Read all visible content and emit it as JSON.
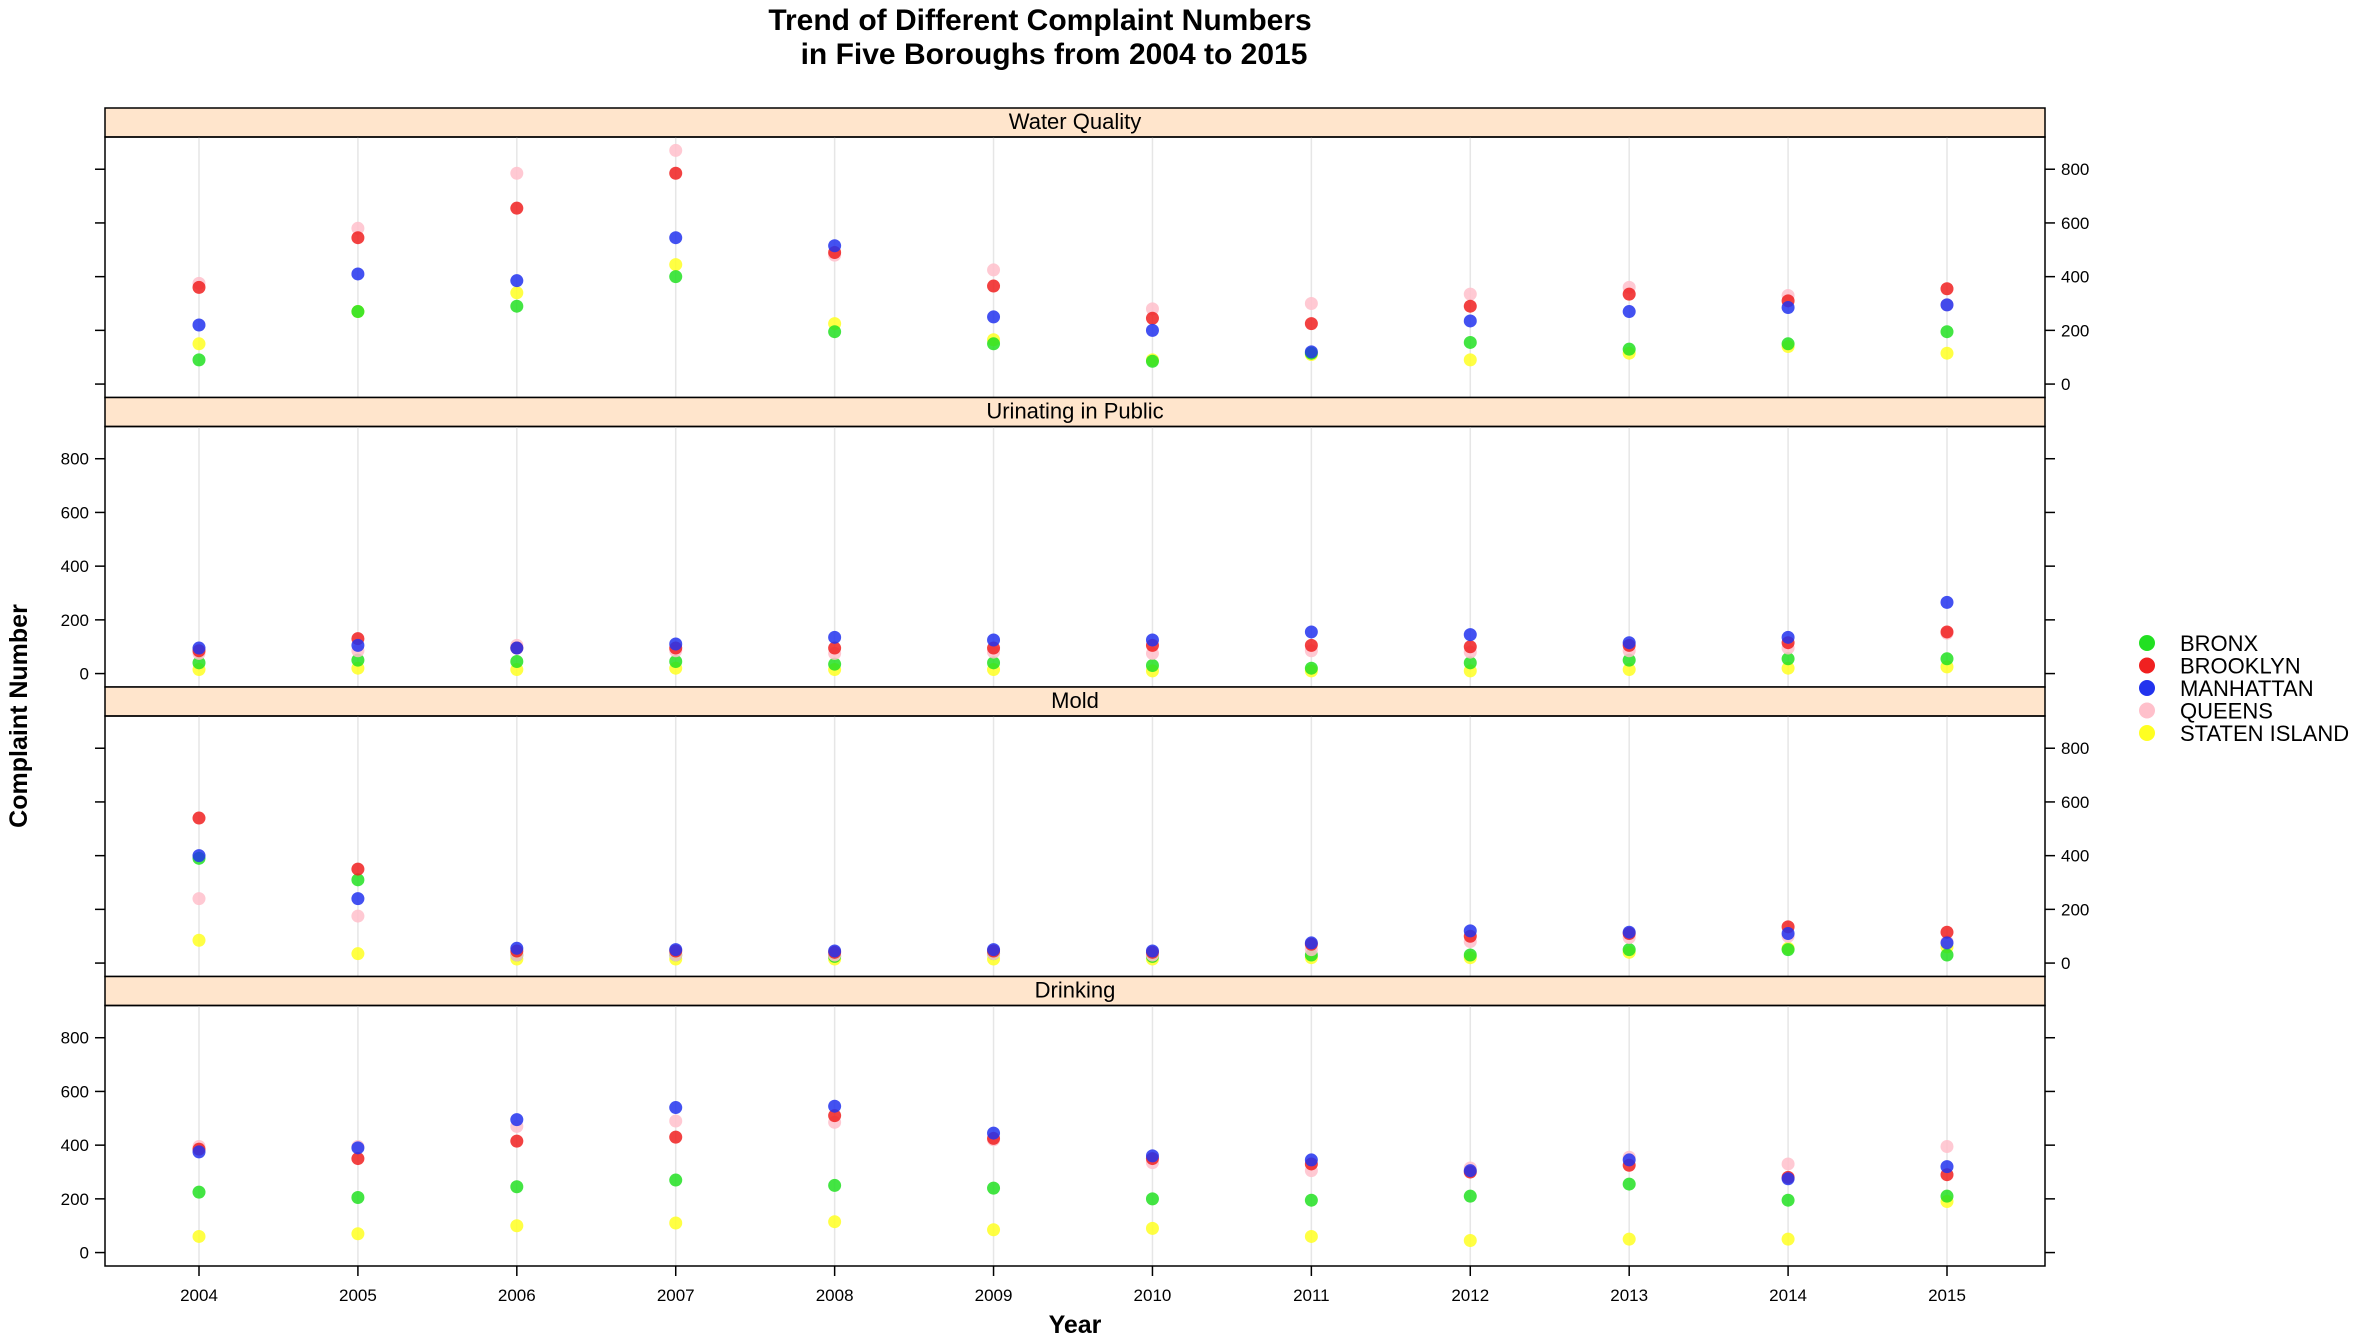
{
  "chart_data": {
    "type": "scatter",
    "title_lines": [
      "Trend of Different Complaint Numbers",
      "in Five Boroughs from 2004 to 2015"
    ],
    "xlabel": "Year",
    "ylabel": "Complaint Number",
    "x": [
      2004,
      2005,
      2006,
      2007,
      2008,
      2009,
      2010,
      2011,
      2012,
      2013,
      2014,
      2015
    ],
    "x_tick_labels": [
      "2004",
      "2005",
      "2006",
      "2007",
      "2008",
      "2009",
      "2010",
      "2011",
      "2012",
      "2013",
      "2014",
      "2015"
    ],
    "y_ticks": [
      0,
      200,
      400,
      600,
      800
    ],
    "y_tick_labels": [
      "0",
      "200",
      "400",
      "600",
      "800"
    ],
    "ylim": [
      -50,
      920
    ],
    "grid": "vertical",
    "legend_position": "right",
    "series": [
      {
        "name": "BRONX",
        "color": "#22e022"
      },
      {
        "name": "BROOKLYN",
        "color": "#f02020"
      },
      {
        "name": "MANHATTAN",
        "color": "#2233ee"
      },
      {
        "name": "QUEENS",
        "color": "#ffc0cb"
      },
      {
        "name": "STATEN ISLAND",
        "color": "#ffff22"
      }
    ],
    "panels": [
      {
        "name": "Water Quality",
        "values": {
          "BRONX": [
            90,
            270,
            290,
            400,
            195,
            150,
            85,
            115,
            155,
            130,
            150,
            195
          ],
          "BROOKLYN": [
            360,
            545,
            655,
            785,
            490,
            365,
            245,
            225,
            290,
            335,
            310,
            355
          ],
          "MANHATTAN": [
            220,
            410,
            385,
            545,
            515,
            250,
            200,
            120,
            235,
            270,
            285,
            295
          ],
          "QUEENS": [
            375,
            580,
            785,
            870,
            480,
            425,
            280,
            300,
            335,
            360,
            330,
            295
          ],
          "STATEN ISLAND": [
            150,
            270,
            340,
            445,
            225,
            165,
            90,
            110,
            90,
            115,
            140,
            115
          ]
        }
      },
      {
        "name": "Urinating in Public",
        "values": {
          "BRONX": [
            40,
            50,
            45,
            45,
            35,
            40,
            30,
            20,
            40,
            50,
            55,
            55
          ],
          "BROOKLYN": [
            85,
            130,
            95,
            95,
            95,
            95,
            105,
            105,
            100,
            105,
            115,
            155
          ],
          "MANHATTAN": [
            95,
            105,
            95,
            110,
            135,
            125,
            125,
            155,
            145,
            115,
            135,
            265
          ],
          "QUEENS": [
            75,
            85,
            105,
            85,
            75,
            80,
            75,
            85,
            80,
            85,
            95,
            150
          ],
          "STATEN ISLAND": [
            15,
            20,
            15,
            20,
            15,
            15,
            10,
            10,
            10,
            15,
            20,
            25
          ]
        }
      },
      {
        "name": "Mold",
        "values": {
          "BRONX": [
            390,
            310,
            30,
            30,
            25,
            35,
            25,
            30,
            30,
            50,
            50,
            30
          ],
          "BROOKLYN": [
            540,
            350,
            45,
            45,
            40,
            45,
            40,
            70,
            100,
            110,
            135,
            115
          ],
          "MANHATTAN": [
            400,
            240,
            55,
            50,
            45,
            50,
            45,
            75,
            120,
            115,
            110,
            75
          ],
          "QUEENS": [
            240,
            175,
            30,
            30,
            30,
            35,
            30,
            50,
            80,
            95,
            100,
            80
          ],
          "STATEN ISLAND": [
            85,
            35,
            15,
            15,
            15,
            15,
            15,
            20,
            20,
            40,
            55,
            60
          ]
        }
      },
      {
        "name": "Drinking",
        "values": {
          "BRONX": [
            225,
            205,
            245,
            270,
            250,
            240,
            200,
            195,
            210,
            255,
            195,
            210
          ],
          "BROOKLYN": [
            385,
            350,
            415,
            430,
            510,
            425,
            350,
            330,
            300,
            325,
            280,
            290
          ],
          "MANHATTAN": [
            375,
            390,
            495,
            540,
            545,
            445,
            360,
            345,
            305,
            345,
            275,
            320
          ],
          "QUEENS": [
            395,
            395,
            470,
            490,
            485,
            420,
            335,
            305,
            315,
            355,
            330,
            395
          ],
          "STATEN ISLAND": [
            60,
            70,
            100,
            110,
            115,
            85,
            90,
            60,
            45,
            50,
            50,
            190
          ]
        }
      }
    ]
  }
}
